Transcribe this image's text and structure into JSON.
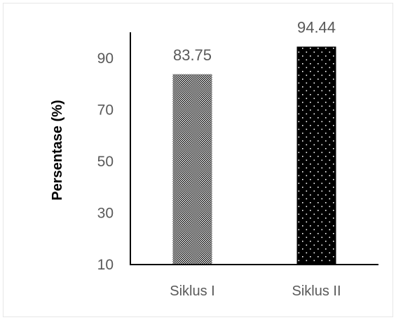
{
  "chart_data": {
    "type": "bar",
    "categories": [
      "Siklus I",
      "Siklus II"
    ],
    "values": [
      83.75,
      94.44
    ],
    "data_labels": [
      "83.75",
      "94.44"
    ],
    "ylabel": "Persentase (%)",
    "ylim": [
      10,
      100
    ],
    "yticks": [
      10,
      30,
      50,
      70,
      90
    ],
    "ytick_labels": [
      "10",
      "30",
      "50",
      "70",
      "90"
    ],
    "grid": false,
    "legend": "none",
    "bar_styles": [
      {
        "fill": "crosshatch",
        "foreground": "#000000",
        "background": "#ffffff"
      },
      {
        "fill": "dotted",
        "foreground": "#ffffff",
        "background": "#000000"
      }
    ],
    "colors": {
      "axis": "#000000",
      "text": "#595959"
    }
  }
}
